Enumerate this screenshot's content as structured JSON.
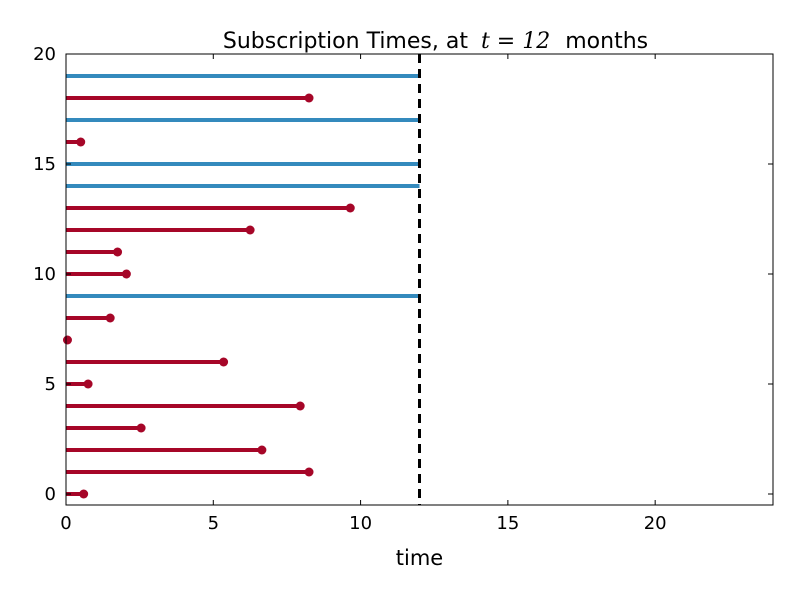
{
  "chart_data": {
    "type": "lollipop",
    "title_prefix": "Subscription Times, at",
    "title_math": "t = 12",
    "title_suffix": "months",
    "xlabel": "time",
    "ylabel": "",
    "xlim": [
      0,
      24
    ],
    "ylim": [
      -0.5,
      20
    ],
    "xticks": [
      0,
      5,
      10,
      15,
      20
    ],
    "yticks": [
      0,
      5,
      10,
      15,
      20
    ],
    "cutoff": 12,
    "grid": false,
    "colors": {
      "observed": "#a60628",
      "censored": "#348abd",
      "cutoff": "#000000"
    },
    "subjects": [
      {
        "id": 0,
        "end": 0.6,
        "observed": true
      },
      {
        "id": 1,
        "end": 8.25,
        "observed": true
      },
      {
        "id": 2,
        "end": 6.65,
        "observed": true
      },
      {
        "id": 3,
        "end": 2.55,
        "observed": true
      },
      {
        "id": 4,
        "end": 7.95,
        "observed": true
      },
      {
        "id": 5,
        "end": 0.75,
        "observed": true
      },
      {
        "id": 6,
        "end": 5.35,
        "observed": true
      },
      {
        "id": 7,
        "end": 0.05,
        "observed": true
      },
      {
        "id": 8,
        "end": 1.5,
        "observed": true
      },
      {
        "id": 9,
        "end": 12,
        "observed": false
      },
      {
        "id": 10,
        "end": 2.05,
        "observed": true
      },
      {
        "id": 11,
        "end": 1.75,
        "observed": true
      },
      {
        "id": 12,
        "end": 6.25,
        "observed": true
      },
      {
        "id": 13,
        "end": 9.65,
        "observed": true
      },
      {
        "id": 14,
        "end": 12,
        "observed": false
      },
      {
        "id": 15,
        "end": 12,
        "observed": false
      },
      {
        "id": 16,
        "end": 0.5,
        "observed": true
      },
      {
        "id": 17,
        "end": 12,
        "observed": false
      },
      {
        "id": 18,
        "end": 8.25,
        "observed": true
      },
      {
        "id": 19,
        "end": 12,
        "observed": false
      }
    ]
  }
}
